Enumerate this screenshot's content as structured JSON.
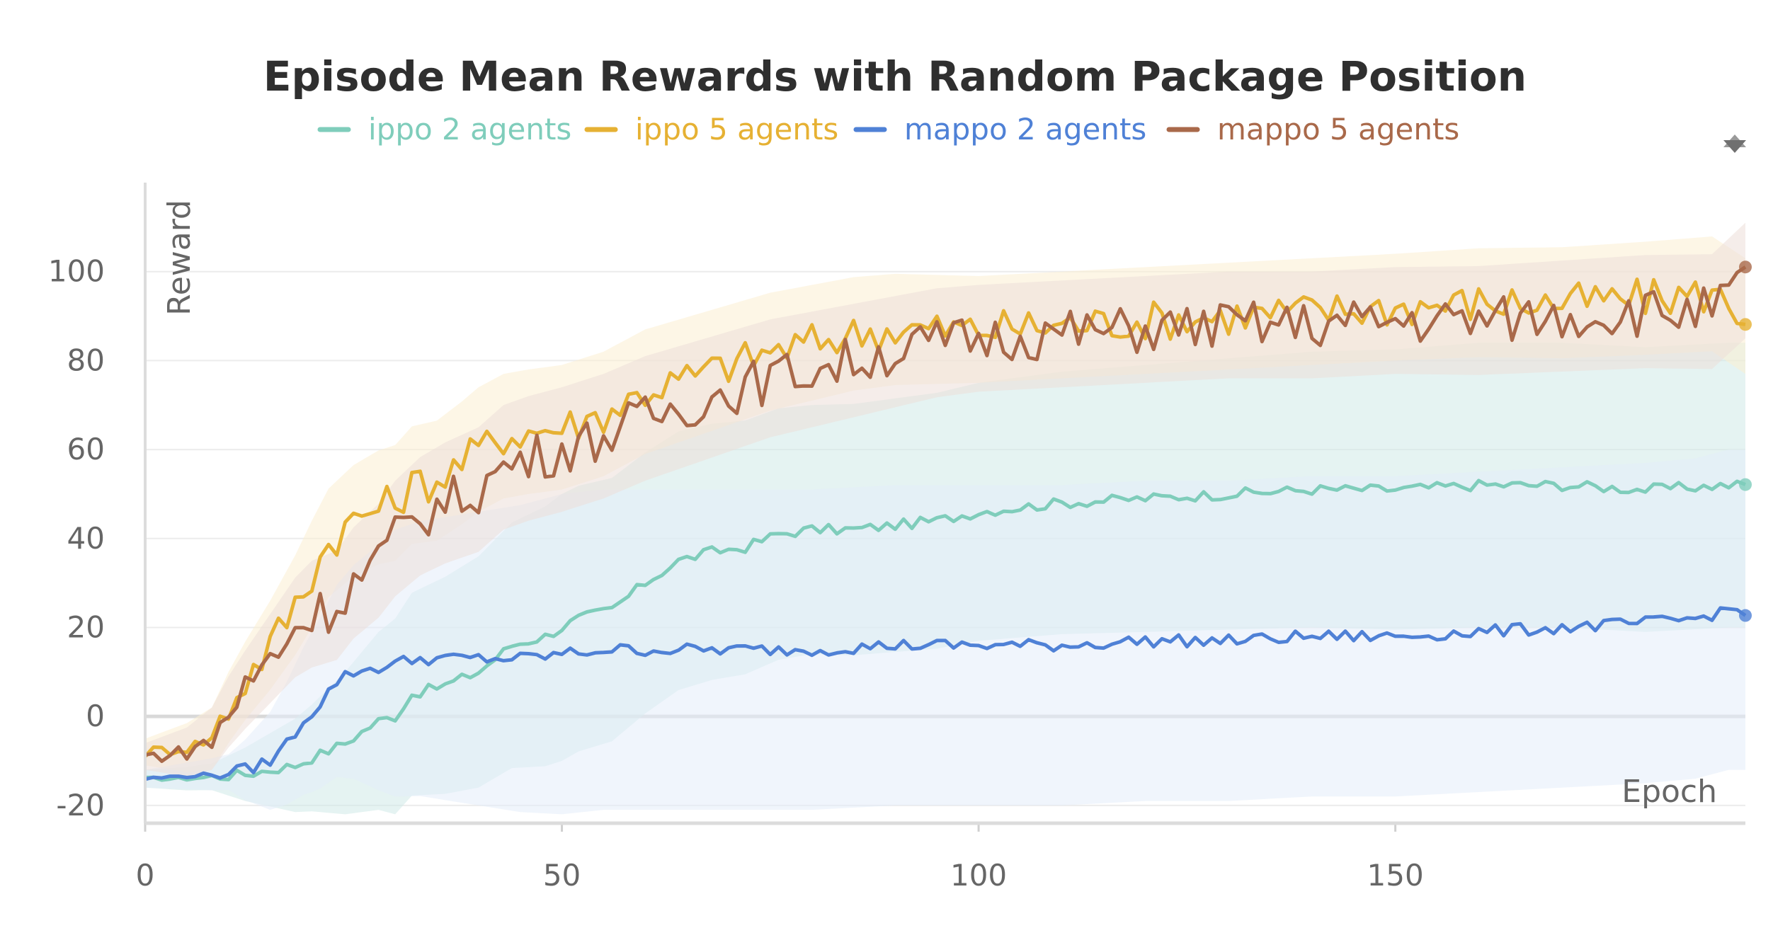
{
  "chart_data": {
    "type": "line",
    "title": "Episode Mean Rewards with Random Package Position",
    "xlabel": "Epoch",
    "ylabel": "Reward",
    "xlim": [
      0,
      192
    ],
    "ylim": [
      -24,
      120
    ],
    "xticks": [
      0,
      50,
      100,
      150
    ],
    "yticks": [
      -20,
      0,
      20,
      40,
      60,
      80,
      100
    ],
    "grid": true,
    "legend_position": "top",
    "series": [
      {
        "name": "ippo 2 agents",
        "color": "#7fcdbb",
        "band_color": "#cfeae8",
        "keypoints": [
          [
            0,
            -14
          ],
          [
            5,
            -14
          ],
          [
            12,
            -13
          ],
          [
            18,
            -11
          ],
          [
            24,
            -6
          ],
          [
            28,
            -1
          ],
          [
            30,
            0
          ],
          [
            32,
            5
          ],
          [
            36,
            7
          ],
          [
            40,
            10
          ],
          [
            44,
            16
          ],
          [
            48,
            18
          ],
          [
            52,
            22
          ],
          [
            56,
            24
          ],
          [
            60,
            30
          ],
          [
            64,
            35
          ],
          [
            68,
            37
          ],
          [
            72,
            38
          ],
          [
            76,
            41
          ],
          [
            80,
            42
          ],
          [
            85,
            42
          ],
          [
            90,
            43
          ],
          [
            95,
            44
          ],
          [
            100,
            46
          ],
          [
            110,
            48
          ],
          [
            120,
            49
          ],
          [
            130,
            50
          ],
          [
            140,
            51
          ],
          [
            150,
            51
          ],
          [
            160,
            52
          ],
          [
            170,
            52
          ],
          [
            180,
            51
          ],
          [
            190,
            52
          ],
          [
            192,
            52
          ]
        ],
        "band_width": [
          [
            0,
            2
          ],
          [
            8,
            3
          ],
          [
            20,
            12
          ],
          [
            30,
            22
          ],
          [
            50,
            30
          ],
          [
            80,
            28
          ],
          [
            120,
            30
          ],
          [
            160,
            32
          ],
          [
            192,
            32
          ]
        ]
      },
      {
        "name": "ippo 5 agents",
        "color": "#e6b133",
        "band_color": "#fbeed1",
        "keypoints": [
          [
            0,
            -8
          ],
          [
            5,
            -7
          ],
          [
            8,
            -5
          ],
          [
            10,
            2
          ],
          [
            12,
            8
          ],
          [
            15,
            16
          ],
          [
            18,
            25
          ],
          [
            20,
            32
          ],
          [
            22,
            39
          ],
          [
            25,
            44
          ],
          [
            28,
            47
          ],
          [
            30,
            48
          ],
          [
            32,
            52
          ],
          [
            35,
            53
          ],
          [
            38,
            57
          ],
          [
            40,
            60
          ],
          [
            43,
            63
          ],
          [
            46,
            64
          ],
          [
            50,
            65
          ],
          [
            55,
            68
          ],
          [
            60,
            73
          ],
          [
            65,
            76
          ],
          [
            70,
            79
          ],
          [
            75,
            82
          ],
          [
            80,
            84
          ],
          [
            85,
            86
          ],
          [
            90,
            87
          ],
          [
            95,
            87
          ],
          [
            100,
            87
          ],
          [
            110,
            88
          ],
          [
            120,
            89
          ],
          [
            130,
            90
          ],
          [
            140,
            91
          ],
          [
            150,
            92
          ],
          [
            160,
            93
          ],
          [
            170,
            93
          ],
          [
            180,
            94
          ],
          [
            188,
            95
          ],
          [
            192,
            90
          ]
        ],
        "band_width": [
          [
            0,
            3
          ],
          [
            10,
            8
          ],
          [
            20,
            12
          ],
          [
            40,
            14
          ],
          [
            60,
            14
          ],
          [
            100,
            12
          ],
          [
            150,
            12
          ],
          [
            192,
            13
          ]
        ]
      },
      {
        "name": "mappo 2 agents",
        "color": "#4f81d6",
        "band_color": "#e4edfa",
        "keypoints": [
          [
            0,
            -14
          ],
          [
            8,
            -13
          ],
          [
            12,
            -12
          ],
          [
            15,
            -10
          ],
          [
            17,
            -6
          ],
          [
            19,
            -1
          ],
          [
            21,
            3
          ],
          [
            23,
            8
          ],
          [
            25,
            10
          ],
          [
            28,
            11
          ],
          [
            30,
            12
          ],
          [
            33,
            13
          ],
          [
            36,
            13
          ],
          [
            40,
            13
          ],
          [
            45,
            13
          ],
          [
            50,
            14
          ],
          [
            55,
            15
          ],
          [
            60,
            15
          ],
          [
            70,
            15
          ],
          [
            80,
            15
          ],
          [
            90,
            16
          ],
          [
            100,
            16
          ],
          [
            110,
            16
          ],
          [
            120,
            17
          ],
          [
            130,
            17
          ],
          [
            140,
            18
          ],
          [
            150,
            18
          ],
          [
            160,
            19
          ],
          [
            170,
            20
          ],
          [
            180,
            21
          ],
          [
            186,
            22
          ],
          [
            190,
            24
          ],
          [
            192,
            24
          ]
        ],
        "band_width": [
          [
            0,
            2
          ],
          [
            10,
            4
          ],
          [
            20,
            18
          ],
          [
            30,
            30
          ],
          [
            50,
            36
          ],
          [
            80,
            36
          ],
          [
            120,
            36
          ],
          [
            160,
            36
          ],
          [
            192,
            36
          ]
        ]
      },
      {
        "name": "mappo 5 agents",
        "color": "#a9694a",
        "band_color": "#ecdfd8",
        "keypoints": [
          [
            0,
            -9
          ],
          [
            5,
            -8
          ],
          [
            8,
            -5
          ],
          [
            10,
            1
          ],
          [
            12,
            6
          ],
          [
            15,
            13
          ],
          [
            18,
            20
          ],
          [
            20,
            23
          ],
          [
            23,
            25
          ],
          [
            25,
            30
          ],
          [
            28,
            35
          ],
          [
            30,
            40
          ],
          [
            33,
            45
          ],
          [
            36,
            48
          ],
          [
            40,
            51
          ],
          [
            43,
            56
          ],
          [
            46,
            58
          ],
          [
            50,
            60
          ],
          [
            55,
            63
          ],
          [
            60,
            67
          ],
          [
            65,
            70
          ],
          [
            70,
            73
          ],
          [
            75,
            76
          ],
          [
            80,
            78
          ],
          [
            85,
            80
          ],
          [
            90,
            82
          ],
          [
            95,
            84
          ],
          [
            100,
            85
          ],
          [
            110,
            86
          ],
          [
            120,
            87
          ],
          [
            130,
            88
          ],
          [
            140,
            88
          ],
          [
            150,
            89
          ],
          [
            160,
            89
          ],
          [
            170,
            90
          ],
          [
            180,
            91
          ],
          [
            188,
            91
          ],
          [
            192,
            98
          ]
        ],
        "band_width": [
          [
            0,
            3
          ],
          [
            10,
            8
          ],
          [
            20,
            12
          ],
          [
            40,
            14
          ],
          [
            60,
            14
          ],
          [
            100,
            12
          ],
          [
            150,
            12
          ],
          [
            192,
            13
          ]
        ]
      }
    ]
  }
}
